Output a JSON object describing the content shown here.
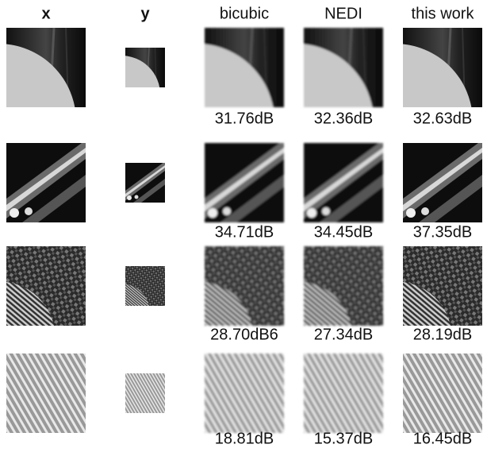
{
  "header": {
    "columns": [
      "x",
      "y",
      "bicubic",
      "NEDI",
      "this work"
    ]
  },
  "rows": [
    {
      "psnr": [
        "31.76dB",
        "32.36dB",
        "32.63dB"
      ]
    },
    {
      "psnr": [
        "34.71dB",
        "34.45dB",
        "37.35dB"
      ]
    },
    {
      "psnr": [
        "28.70dB6",
        "27.34dB",
        "28.19dB"
      ]
    },
    {
      "psnr": [
        "18.81dB",
        "15.37dB",
        "16.45dB"
      ]
    }
  ]
}
